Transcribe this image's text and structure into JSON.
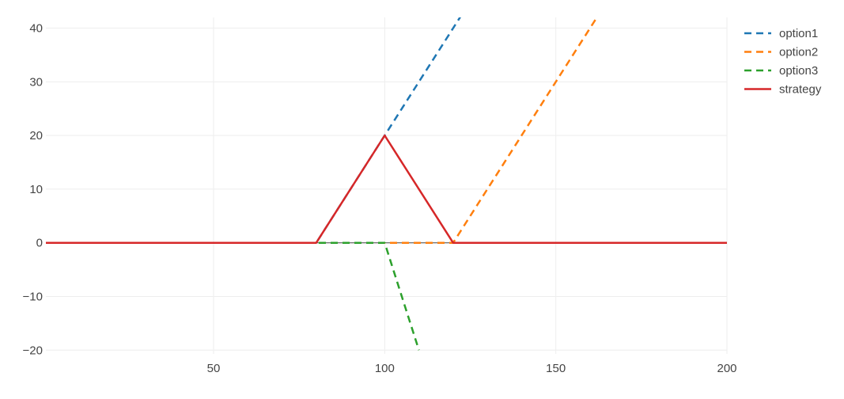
{
  "chart_data": {
    "type": "line",
    "title": "",
    "xlabel": "",
    "ylabel": "",
    "xlim": [
      1,
      200
    ],
    "ylim": [
      -20.7,
      42
    ],
    "x_ticks": [
      50,
      100,
      150,
      200
    ],
    "y_ticks": [
      -20,
      -10,
      0,
      10,
      20,
      30,
      40
    ],
    "grid": true,
    "legend_position": "top-right",
    "series": [
      {
        "name": "option1",
        "color": "#1f77b4",
        "dash": "dashed",
        "points": [
          [
            1,
            0
          ],
          [
            80,
            0
          ],
          [
            123,
            43
          ]
        ]
      },
      {
        "name": "option2",
        "color": "#ff7f0e",
        "dash": "dashed",
        "points": [
          [
            1,
            0
          ],
          [
            120,
            0
          ],
          [
            162.5,
            42.5
          ]
        ]
      },
      {
        "name": "option3",
        "color": "#2ca02c",
        "dash": "dashed",
        "points": [
          [
            1,
            0
          ],
          [
            100,
            0
          ],
          [
            110,
            -20
          ]
        ]
      },
      {
        "name": "strategy",
        "color": "#d62728",
        "dash": "solid",
        "points": [
          [
            1,
            0
          ],
          [
            80,
            0
          ],
          [
            100,
            20
          ],
          [
            120,
            0
          ],
          [
            200,
            0
          ]
        ]
      }
    ]
  }
}
